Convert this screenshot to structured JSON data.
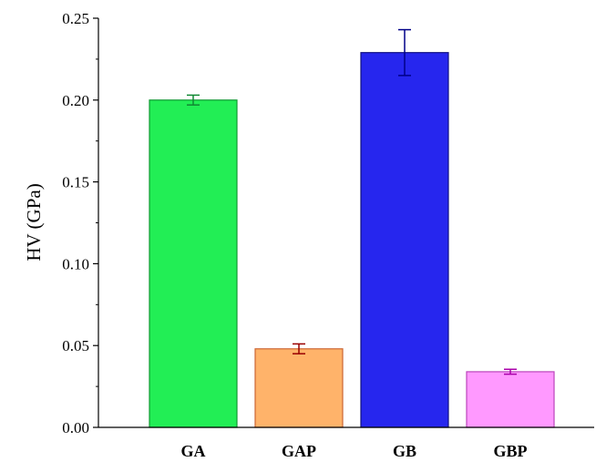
{
  "chart_data": {
    "type": "bar",
    "title": "",
    "xlabel": "",
    "ylabel": "HV (GPa)",
    "categories": [
      "GA",
      "GAP",
      "GB",
      "GBP"
    ],
    "values": [
      0.2,
      0.048,
      0.229,
      0.034
    ],
    "errors": [
      0.003,
      0.003,
      0.014,
      0.0015
    ],
    "ylim": [
      0,
      0.25
    ],
    "yticks": [
      "0.00",
      "0.05",
      "0.10",
      "0.15",
      "0.20",
      "0.25"
    ],
    "grid": false,
    "legend": "none",
    "bar_colors": [
      "#22ee55",
      "#ffb36a",
      "#2626ee",
      "#ff99ff"
    ],
    "bar_edge_colors": [
      "#119933",
      "#cc6633",
      "#101080",
      "#bb44bb"
    ],
    "error_colors": [
      "#118833",
      "#990000",
      "#000088",
      "#aa00aa"
    ]
  }
}
